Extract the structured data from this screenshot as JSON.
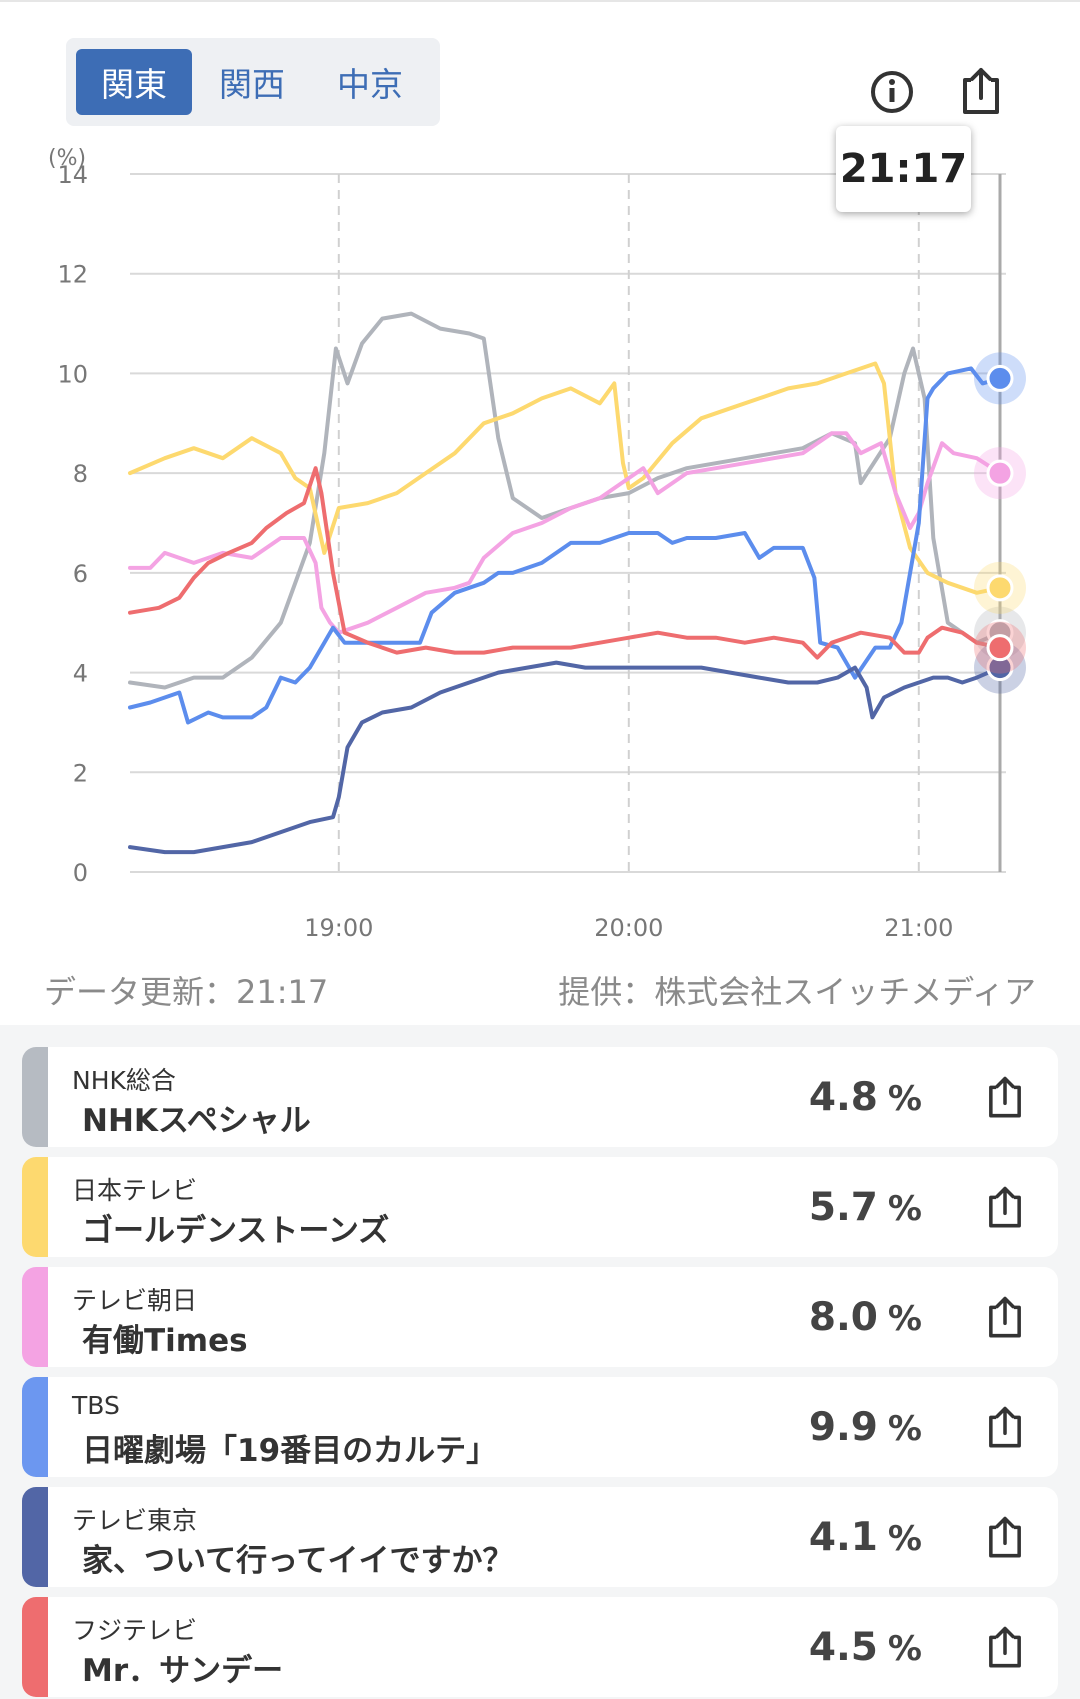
{
  "tabs": [
    {
      "label": "関東",
      "active": true
    },
    {
      "label": "関西",
      "active": false
    },
    {
      "label": "中京",
      "active": false
    }
  ],
  "header_icons": [
    "info-icon",
    "share-icon"
  ],
  "tooltip": {
    "time": "21:17"
  },
  "footer": {
    "updated": "データ更新：21:17",
    "source": "提供：株式会社スイッチメディア"
  },
  "chart_data": {
    "type": "line",
    "unit_label": "(%)",
    "xlim": [
      18.28,
      21.28
    ],
    "ylim": [
      0,
      14
    ],
    "xticks": [
      {
        "v": 19.0,
        "label": "19:00"
      },
      {
        "v": 20.0,
        "label": "20:00"
      },
      {
        "v": 21.0,
        "label": "21:00"
      }
    ],
    "yticks": [
      0,
      2,
      4,
      6,
      8,
      10,
      12,
      14
    ],
    "cursor_x": 21.28,
    "grid": true,
    "series": [
      {
        "name": "NHK総合",
        "color": "#b0b4bb",
        "values": [
          [
            18.28,
            3.8
          ],
          [
            18.4,
            3.7
          ],
          [
            18.5,
            3.9
          ],
          [
            18.6,
            3.9
          ],
          [
            18.7,
            4.3
          ],
          [
            18.8,
            5.0
          ],
          [
            18.9,
            6.6
          ],
          [
            18.95,
            8.4
          ],
          [
            18.99,
            10.5
          ],
          [
            19.03,
            9.8
          ],
          [
            19.08,
            10.6
          ],
          [
            19.15,
            11.1
          ],
          [
            19.25,
            11.2
          ],
          [
            19.35,
            10.9
          ],
          [
            19.45,
            10.8
          ],
          [
            19.5,
            10.7
          ],
          [
            19.55,
            8.7
          ],
          [
            19.6,
            7.5
          ],
          [
            19.7,
            7.1
          ],
          [
            19.8,
            7.3
          ],
          [
            19.9,
            7.5
          ],
          [
            20.0,
            7.6
          ],
          [
            20.1,
            7.9
          ],
          [
            20.2,
            8.1
          ],
          [
            20.3,
            8.2
          ],
          [
            20.4,
            8.3
          ],
          [
            20.5,
            8.4
          ],
          [
            20.6,
            8.5
          ],
          [
            20.7,
            8.8
          ],
          [
            20.78,
            8.6
          ],
          [
            20.8,
            7.8
          ],
          [
            20.9,
            8.7
          ],
          [
            20.95,
            10.0
          ],
          [
            20.98,
            10.5
          ],
          [
            21.02,
            9.5
          ],
          [
            21.05,
            6.7
          ],
          [
            21.1,
            5.0
          ],
          [
            21.2,
            4.6
          ],
          [
            21.28,
            4.8
          ]
        ]
      },
      {
        "name": "日本テレビ",
        "color": "#fdd96f",
        "values": [
          [
            18.28,
            8.0
          ],
          [
            18.4,
            8.3
          ],
          [
            18.5,
            8.5
          ],
          [
            18.6,
            8.3
          ],
          [
            18.7,
            8.7
          ],
          [
            18.8,
            8.4
          ],
          [
            18.85,
            7.9
          ],
          [
            18.9,
            7.7
          ],
          [
            18.95,
            6.4
          ],
          [
            19.0,
            7.3
          ],
          [
            19.1,
            7.4
          ],
          [
            19.2,
            7.6
          ],
          [
            19.3,
            8.0
          ],
          [
            19.4,
            8.4
          ],
          [
            19.5,
            9.0
          ],
          [
            19.6,
            9.2
          ],
          [
            19.7,
            9.5
          ],
          [
            19.8,
            9.7
          ],
          [
            19.9,
            9.4
          ],
          [
            19.95,
            9.8
          ],
          [
            19.98,
            8.2
          ],
          [
            20.0,
            7.7
          ],
          [
            20.05,
            7.9
          ],
          [
            20.15,
            8.6
          ],
          [
            20.25,
            9.1
          ],
          [
            20.35,
            9.3
          ],
          [
            20.45,
            9.5
          ],
          [
            20.55,
            9.7
          ],
          [
            20.65,
            9.8
          ],
          [
            20.75,
            10.0
          ],
          [
            20.85,
            10.2
          ],
          [
            20.88,
            9.8
          ],
          [
            20.92,
            7.6
          ],
          [
            20.97,
            6.5
          ],
          [
            21.03,
            6.0
          ],
          [
            21.1,
            5.8
          ],
          [
            21.2,
            5.6
          ],
          [
            21.28,
            5.7
          ]
        ]
      },
      {
        "name": "テレビ朝日",
        "color": "#f4a3e3",
        "values": [
          [
            18.28,
            6.1
          ],
          [
            18.35,
            6.1
          ],
          [
            18.4,
            6.4
          ],
          [
            18.5,
            6.2
          ],
          [
            18.6,
            6.4
          ],
          [
            18.7,
            6.3
          ],
          [
            18.8,
            6.7
          ],
          [
            18.88,
            6.7
          ],
          [
            18.92,
            6.2
          ],
          [
            18.94,
            5.3
          ],
          [
            18.97,
            5.0
          ],
          [
            19.0,
            4.8
          ],
          [
            19.1,
            5.0
          ],
          [
            19.2,
            5.3
          ],
          [
            19.3,
            5.6
          ],
          [
            19.4,
            5.7
          ],
          [
            19.45,
            5.8
          ],
          [
            19.5,
            6.3
          ],
          [
            19.6,
            6.8
          ],
          [
            19.7,
            7.0
          ],
          [
            19.8,
            7.3
          ],
          [
            19.9,
            7.5
          ],
          [
            20.0,
            7.9
          ],
          [
            20.05,
            8.1
          ],
          [
            20.1,
            7.6
          ],
          [
            20.2,
            8.0
          ],
          [
            20.3,
            8.1
          ],
          [
            20.4,
            8.2
          ],
          [
            20.5,
            8.3
          ],
          [
            20.6,
            8.4
          ],
          [
            20.7,
            8.8
          ],
          [
            20.75,
            8.8
          ],
          [
            20.8,
            8.4
          ],
          [
            20.87,
            8.6
          ],
          [
            20.92,
            7.6
          ],
          [
            20.97,
            6.9
          ],
          [
            21.0,
            7.2
          ],
          [
            21.03,
            7.8
          ],
          [
            21.08,
            8.6
          ],
          [
            21.12,
            8.4
          ],
          [
            21.2,
            8.3
          ],
          [
            21.28,
            8.0
          ]
        ]
      },
      {
        "name": "TBS",
        "color": "#5c8ded",
        "values": [
          [
            18.28,
            3.3
          ],
          [
            18.35,
            3.4
          ],
          [
            18.45,
            3.6
          ],
          [
            18.48,
            3.0
          ],
          [
            18.55,
            3.2
          ],
          [
            18.6,
            3.1
          ],
          [
            18.7,
            3.1
          ],
          [
            18.75,
            3.3
          ],
          [
            18.8,
            3.9
          ],
          [
            18.85,
            3.8
          ],
          [
            18.9,
            4.1
          ],
          [
            18.95,
            4.6
          ],
          [
            18.98,
            4.9
          ],
          [
            19.02,
            4.6
          ],
          [
            19.1,
            4.6
          ],
          [
            19.2,
            4.6
          ],
          [
            19.28,
            4.6
          ],
          [
            19.32,
            5.2
          ],
          [
            19.4,
            5.6
          ],
          [
            19.5,
            5.8
          ],
          [
            19.55,
            6.0
          ],
          [
            19.6,
            6.0
          ],
          [
            19.7,
            6.2
          ],
          [
            19.8,
            6.6
          ],
          [
            19.9,
            6.6
          ],
          [
            20.0,
            6.8
          ],
          [
            20.1,
            6.8
          ],
          [
            20.15,
            6.6
          ],
          [
            20.2,
            6.7
          ],
          [
            20.3,
            6.7
          ],
          [
            20.4,
            6.8
          ],
          [
            20.45,
            6.3
          ],
          [
            20.5,
            6.5
          ],
          [
            20.6,
            6.5
          ],
          [
            20.64,
            5.9
          ],
          [
            20.66,
            4.6
          ],
          [
            20.72,
            4.5
          ],
          [
            20.78,
            3.9
          ],
          [
            20.85,
            4.5
          ],
          [
            20.9,
            4.5
          ],
          [
            20.94,
            5.0
          ],
          [
            21.0,
            7.0
          ],
          [
            21.03,
            9.5
          ],
          [
            21.05,
            9.7
          ],
          [
            21.1,
            10.0
          ],
          [
            21.18,
            10.1
          ],
          [
            21.22,
            9.8
          ],
          [
            21.28,
            9.9
          ]
        ]
      },
      {
        "name": "テレビ東京",
        "color": "#5266a6",
        "values": [
          [
            18.28,
            0.5
          ],
          [
            18.4,
            0.4
          ],
          [
            18.5,
            0.4
          ],
          [
            18.6,
            0.5
          ],
          [
            18.7,
            0.6
          ],
          [
            18.8,
            0.8
          ],
          [
            18.9,
            1.0
          ],
          [
            18.98,
            1.1
          ],
          [
            19.0,
            1.5
          ],
          [
            19.03,
            2.5
          ],
          [
            19.08,
            3.0
          ],
          [
            19.15,
            3.2
          ],
          [
            19.25,
            3.3
          ],
          [
            19.35,
            3.6
          ],
          [
            19.45,
            3.8
          ],
          [
            19.55,
            4.0
          ],
          [
            19.65,
            4.1
          ],
          [
            19.75,
            4.2
          ],
          [
            19.85,
            4.1
          ],
          [
            19.95,
            4.1
          ],
          [
            20.05,
            4.1
          ],
          [
            20.15,
            4.1
          ],
          [
            20.25,
            4.1
          ],
          [
            20.35,
            4.0
          ],
          [
            20.45,
            3.9
          ],
          [
            20.55,
            3.8
          ],
          [
            20.65,
            3.8
          ],
          [
            20.72,
            3.9
          ],
          [
            20.78,
            4.1
          ],
          [
            20.82,
            3.7
          ],
          [
            20.84,
            3.1
          ],
          [
            20.88,
            3.5
          ],
          [
            20.95,
            3.7
          ],
          [
            21.05,
            3.9
          ],
          [
            21.1,
            3.9
          ],
          [
            21.15,
            3.8
          ],
          [
            21.2,
            3.9
          ],
          [
            21.28,
            4.1
          ]
        ]
      },
      {
        "name": "フジテレビ",
        "color": "#ee6d6f",
        "values": [
          [
            18.28,
            5.2
          ],
          [
            18.38,
            5.3
          ],
          [
            18.45,
            5.5
          ],
          [
            18.5,
            5.9
          ],
          [
            18.55,
            6.2
          ],
          [
            18.62,
            6.4
          ],
          [
            18.7,
            6.6
          ],
          [
            18.75,
            6.9
          ],
          [
            18.82,
            7.2
          ],
          [
            18.88,
            7.4
          ],
          [
            18.92,
            8.1
          ],
          [
            18.94,
            7.6
          ],
          [
            18.98,
            6.0
          ],
          [
            19.02,
            4.8
          ],
          [
            19.1,
            4.6
          ],
          [
            19.2,
            4.4
          ],
          [
            19.3,
            4.5
          ],
          [
            19.4,
            4.4
          ],
          [
            19.5,
            4.4
          ],
          [
            19.6,
            4.5
          ],
          [
            19.7,
            4.5
          ],
          [
            19.8,
            4.5
          ],
          [
            19.9,
            4.6
          ],
          [
            20.0,
            4.7
          ],
          [
            20.1,
            4.8
          ],
          [
            20.2,
            4.7
          ],
          [
            20.3,
            4.7
          ],
          [
            20.4,
            4.6
          ],
          [
            20.5,
            4.7
          ],
          [
            20.6,
            4.6
          ],
          [
            20.65,
            4.3
          ],
          [
            20.7,
            4.6
          ],
          [
            20.8,
            4.8
          ],
          [
            20.9,
            4.7
          ],
          [
            20.95,
            4.4
          ],
          [
            21.0,
            4.4
          ],
          [
            21.03,
            4.7
          ],
          [
            21.08,
            4.9
          ],
          [
            21.15,
            4.8
          ],
          [
            21.2,
            4.6
          ],
          [
            21.28,
            4.5
          ]
        ]
      }
    ]
  },
  "programs": [
    {
      "channel": "NHK総合",
      "title": "NHKスペシャル",
      "rating": "4.8",
      "unit": "%",
      "color": "#b6bbc2"
    },
    {
      "channel": "日本テレビ",
      "title": "ゴールデンストーンズ",
      "rating": "5.7",
      "unit": "%",
      "color": "#fdd96f"
    },
    {
      "channel": "テレビ朝日",
      "title": "有働Times",
      "rating": "8.0",
      "unit": "%",
      "color": "#f4a3e3"
    },
    {
      "channel": "TBS",
      "title": "日曜劇場「19番目のカルテ」",
      "rating": "9.9",
      "unit": "%",
      "color": "#6c97f0"
    },
    {
      "channel": "テレビ東京",
      "title": "家、ついて行ってイイですか？",
      "rating": "4.1",
      "unit": "%",
      "color": "#5266a6"
    },
    {
      "channel": "フジテレビ",
      "title": "Mr．サンデー",
      "rating": "4.5",
      "unit": "%",
      "color": "#ee6d6f"
    }
  ]
}
